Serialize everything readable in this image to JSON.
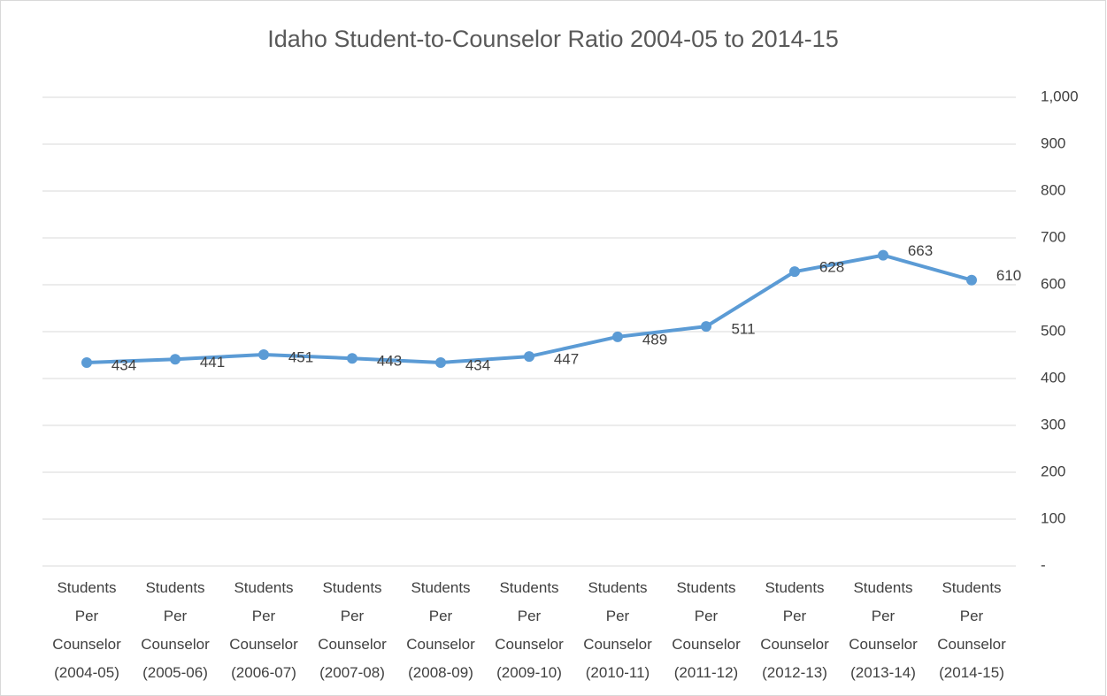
{
  "chart_data": {
    "type": "line",
    "title": "Idaho Student-to-Counselor Ratio 2004-05 to 2014-15",
    "categories": [
      "Students Per Counselor (2004-05)",
      "Students Per Counselor (2005-06)",
      "Students Per Counselor (2006-07)",
      "Students Per Counselor (2007-08)",
      "Students Per Counselor (2008-09)",
      "Students Per Counselor (2009-10)",
      "Students Per Counselor (2010-11)",
      "Students Per Counselor (2011-12)",
      "Students Per Counselor (2012-13)",
      "Students Per Counselor (2013-14)",
      "Students Per Counselor (2014-15)"
    ],
    "values": [
      434,
      441,
      451,
      443,
      434,
      447,
      489,
      511,
      628,
      663,
      610
    ],
    "color": "#5b9bd5",
    "ylim": [
      0,
      1000
    ],
    "yticks": [
      {
        "value": 0,
        "label": "-"
      },
      100,
      200,
      300,
      400,
      500,
      600,
      700,
      800,
      900,
      {
        "value": 1000,
        "label": "1,000"
      }
    ],
    "y_axis_side": "right",
    "grid": true
  }
}
